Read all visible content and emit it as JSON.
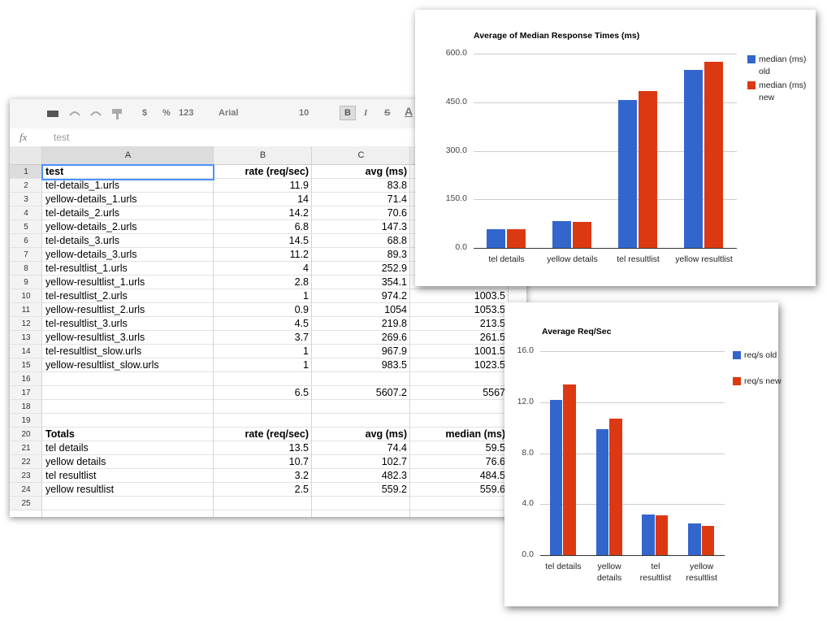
{
  "toolbar": {
    "currency": "$",
    "percent": "%",
    "number_format": "123",
    "font": "Arial",
    "font_size": "10",
    "bold": "B",
    "italic": "I",
    "strikethrough": "S",
    "text_color": "A"
  },
  "formula_bar": {
    "label": "fx",
    "value": "test"
  },
  "sheet": {
    "columns": [
      "A",
      "B",
      "C"
    ],
    "rows": [
      {
        "n": 1,
        "bold": true,
        "cells": [
          "test",
          "rate (req/sec)",
          "avg (ms)"
        ]
      },
      {
        "n": 2,
        "cells": [
          "tel-details_1.urls",
          "11.9",
          "83.8"
        ]
      },
      {
        "n": 3,
        "cells": [
          "yellow-details_1.urls",
          "14",
          "71.4"
        ]
      },
      {
        "n": 4,
        "cells": [
          "tel-details_2.urls",
          "14.2",
          "70.6"
        ]
      },
      {
        "n": 5,
        "cells": [
          "yellow-details_2.urls",
          "6.8",
          "147.3"
        ]
      },
      {
        "n": 6,
        "cells": [
          "tel-details_3.urls",
          "14.5",
          "68.8"
        ]
      },
      {
        "n": 7,
        "cells": [
          "yellow-details_3.urls",
          "11.2",
          "89.3"
        ]
      },
      {
        "n": 8,
        "cells": [
          "tel-resultlist_1.urls",
          "4",
          "252.9"
        ]
      },
      {
        "n": 9,
        "cells": [
          "yellow-resultlist_1.urls",
          "2.8",
          "354.1"
        ]
      },
      {
        "n": 10,
        "cells": [
          "tel-resultlist_2.urls",
          "1",
          "974.2",
          "1003.5"
        ]
      },
      {
        "n": 11,
        "cells": [
          "yellow-resultlist_2.urls",
          "0.9",
          "1054",
          "1053.5"
        ]
      },
      {
        "n": 12,
        "cells": [
          "tel-resultlist_3.urls",
          "4.5",
          "219.8",
          "213.5"
        ]
      },
      {
        "n": 13,
        "cells": [
          "yellow-resultlist_3.urls",
          "3.7",
          "269.6",
          "261.5"
        ]
      },
      {
        "n": 14,
        "cells": [
          "tel-resultlist_slow.urls",
          "1",
          "967.9",
          "1001.5"
        ]
      },
      {
        "n": 15,
        "cells": [
          "yellow-resultlist_slow.urls",
          "1",
          "983.5",
          "1023.5"
        ]
      },
      {
        "n": 16,
        "cells": []
      },
      {
        "n": 17,
        "cells": [
          null,
          "6.5",
          "5607.2",
          "5567"
        ]
      },
      {
        "n": 18,
        "cells": []
      },
      {
        "n": 19,
        "cells": []
      },
      {
        "n": 20,
        "bold": true,
        "cells": [
          "Totals",
          "rate (req/sec)",
          "avg (ms)",
          "median (ms)"
        ]
      },
      {
        "n": 21,
        "cells": [
          "tel details",
          "13.5",
          "74.4",
          "59.5"
        ]
      },
      {
        "n": 22,
        "cells": [
          "yellow details",
          "10.7",
          "102.7",
          "76.6"
        ]
      },
      {
        "n": 23,
        "cells": [
          "tel resultlist",
          "3.2",
          "482.3",
          "484.5"
        ]
      },
      {
        "n": 24,
        "cells": [
          "yellow resultlist",
          "2.5",
          "559.2",
          "559.6"
        ]
      },
      {
        "n": 25,
        "cells": []
      }
    ]
  },
  "chart_data": [
    {
      "type": "bar",
      "title": "Average of Median Response Times (ms)",
      "categories": [
        "tel details",
        "yellow details",
        "tel resultlist",
        "yellow resultlist"
      ],
      "series": [
        {
          "name": "median (ms) old",
          "color": "#3366cc",
          "values": [
            57,
            82,
            458,
            551
          ]
        },
        {
          "name": "median (ms) new",
          "color": "#dc3912",
          "values": [
            57,
            80,
            484,
            574
          ]
        }
      ],
      "ylim": [
        0,
        600
      ],
      "yticks": [
        {
          "value": 0,
          "label": "0.0"
        },
        {
          "value": 150,
          "label": "150.0"
        },
        {
          "value": 300,
          "label": "300.0"
        },
        {
          "value": 450,
          "label": "450.0"
        },
        {
          "value": 600,
          "label": "600.0"
        }
      ],
      "grid": true,
      "legend": "right"
    },
    {
      "type": "bar",
      "title": "Average Req/Sec",
      "categories": [
        "tel details",
        "yellow details",
        "tel resultlist",
        "yellow resultlist"
      ],
      "series": [
        {
          "name": "req/s old",
          "color": "#3366cc",
          "values": [
            12.2,
            9.9,
            3.2,
            2.5
          ]
        },
        {
          "name": "req/s new",
          "color": "#dc3912",
          "values": [
            13.4,
            10.7,
            3.1,
            2.3
          ]
        }
      ],
      "ylim": [
        0,
        16
      ],
      "yticks": [
        {
          "value": 0,
          "label": "0.0"
        },
        {
          "value": 4,
          "label": "4.0"
        },
        {
          "value": 8,
          "label": "8.0"
        },
        {
          "value": 12,
          "label": "12.0"
        },
        {
          "value": 16,
          "label": "16.0"
        }
      ],
      "grid": true,
      "legend": "right"
    }
  ]
}
